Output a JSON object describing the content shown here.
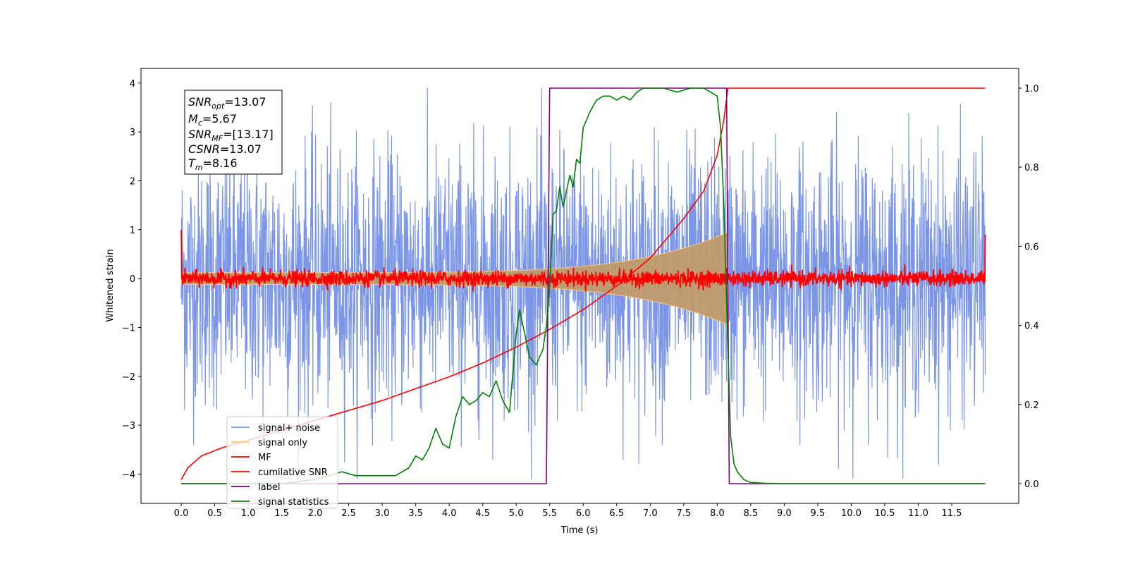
{
  "chart_data": {
    "type": "line",
    "xlabel": "Time (s)",
    "ylabel": "Whitened strain",
    "xlim": [
      -0.6,
      12.5
    ],
    "ylim": [
      -4.6,
      4.3
    ],
    "ylim_right": [
      -0.05,
      1.05
    ],
    "xticks": [
      "0.0",
      "0.5",
      "1.0",
      "1.5",
      "2.0",
      "2.5",
      "3.0",
      "3.5",
      "4.0",
      "4.5",
      "5.0",
      "5.5",
      "6.0",
      "6.5",
      "7.0",
      "7.5",
      "8.0",
      "8.5",
      "9.0",
      "9.5",
      "10.0",
      "10.5",
      "11.0",
      "11.5"
    ],
    "yticks": [
      "4",
      "3",
      "2",
      "1",
      "0",
      "−1",
      "−2",
      "−3",
      "−4"
    ],
    "yticks_right": [
      "1.0",
      "0.8",
      "0.6",
      "0.4",
      "0.2",
      "0.0"
    ],
    "annotation": {
      "snr_opt": {
        "var": "SNR",
        "sub": "opt",
        "value": "=13.07"
      },
      "mc": {
        "var": "M",
        "sub": "c",
        "value": "=5.67"
      },
      "snr_mf": {
        "var": "SNR",
        "sub": "MF",
        "value": "=[13.17]"
      },
      "csnr": {
        "var": "CSNR",
        "sub": "",
        "value": "=13.07"
      },
      "tm": {
        "var": "T",
        "sub": "m",
        "value": "=8.16"
      }
    },
    "legend": {
      "placement": "lower-left",
      "entries": [
        {
          "name": "signal+ noise",
          "color": "#7b96e8"
        },
        {
          "name": "signal only",
          "color": "#ffc870"
        },
        {
          "name": "MF",
          "color": "#ff0000"
        },
        {
          "name": "cumilative SNR",
          "color": "#ff0000"
        },
        {
          "name": "label",
          "color": "#800080"
        },
        {
          "name": "signal statistics",
          "color": "#008000"
        }
      ]
    },
    "series": [
      {
        "name": "signal+ noise",
        "axis": "left",
        "kind": "noise",
        "x_range": [
          0.0,
          12.0
        ],
        "amplitude": 1.3,
        "spike_max": 3.9
      },
      {
        "name": "signal only",
        "axis": "left",
        "kind": "chirp",
        "x_range": [
          0.0,
          8.16
        ],
        "envelope_start": 0.12,
        "envelope_end": 0.95
      },
      {
        "name": "MF",
        "axis": "left",
        "kind": "noise",
        "x_range": [
          0.0,
          12.0
        ],
        "amplitude": 0.08,
        "endpoints": [
          1.0,
          0.9
        ]
      },
      {
        "name": "cumilative SNR",
        "axis": "right",
        "x": [
          0.0,
          0.1,
          0.3,
          0.6,
          1.0,
          1.5,
          2.0,
          2.5,
          3.0,
          3.5,
          4.0,
          4.5,
          5.0,
          5.5,
          6.0,
          6.5,
          7.0,
          7.5,
          7.8,
          8.0,
          8.1,
          8.16,
          8.2,
          12.0
        ],
        "y": [
          0.01,
          0.04,
          0.07,
          0.09,
          0.11,
          0.135,
          0.16,
          0.185,
          0.21,
          0.24,
          0.27,
          0.305,
          0.345,
          0.39,
          0.44,
          0.5,
          0.57,
          0.67,
          0.74,
          0.83,
          0.92,
          1.0,
          1.0,
          1.0
        ]
      },
      {
        "name": "label",
        "axis": "right",
        "x": [
          0.0,
          5.45,
          5.5,
          8.14,
          8.18,
          12.0
        ],
        "y": [
          0.0,
          0.0,
          1.0,
          1.0,
          0.0,
          0.0
        ]
      },
      {
        "name": "signal statistics",
        "axis": "right",
        "x": [
          0.0,
          0.5,
          1.0,
          1.5,
          2.0,
          2.2,
          2.4,
          2.6,
          2.8,
          3.0,
          3.2,
          3.4,
          3.5,
          3.6,
          3.7,
          3.8,
          3.9,
          4.0,
          4.1,
          4.2,
          4.3,
          4.4,
          4.5,
          4.6,
          4.7,
          4.8,
          4.9,
          5.0,
          5.05,
          5.1,
          5.15,
          5.2,
          5.3,
          5.4,
          5.45,
          5.5,
          5.55,
          5.6,
          5.65,
          5.7,
          5.75,
          5.8,
          5.85,
          5.9,
          5.95,
          6.0,
          6.1,
          6.2,
          6.3,
          6.4,
          6.5,
          6.6,
          6.7,
          6.8,
          6.9,
          7.0,
          7.2,
          7.4,
          7.6,
          7.8,
          8.0,
          8.05,
          8.1,
          8.15,
          8.2,
          8.25,
          8.3,
          8.4,
          8.5,
          8.7,
          9.0,
          10.0,
          11.0,
          12.0
        ],
        "y": [
          0.0,
          0.0,
          0.0,
          0.0,
          0.01,
          0.02,
          0.03,
          0.02,
          0.02,
          0.02,
          0.02,
          0.04,
          0.07,
          0.06,
          0.09,
          0.14,
          0.1,
          0.09,
          0.17,
          0.22,
          0.2,
          0.21,
          0.23,
          0.22,
          0.26,
          0.21,
          0.18,
          0.38,
          0.44,
          0.4,
          0.36,
          0.32,
          0.3,
          0.34,
          0.4,
          0.5,
          0.68,
          0.69,
          0.75,
          0.7,
          0.74,
          0.78,
          0.75,
          0.82,
          0.81,
          0.9,
          0.94,
          0.97,
          0.98,
          0.98,
          0.97,
          0.98,
          0.97,
          0.99,
          1.0,
          1.0,
          1.0,
          0.99,
          1.0,
          1.0,
          0.98,
          0.9,
          0.7,
          0.4,
          0.12,
          0.05,
          0.03,
          0.01,
          0.003,
          0.001,
          0.0,
          0.0,
          0.0,
          0.0
        ]
      }
    ]
  }
}
